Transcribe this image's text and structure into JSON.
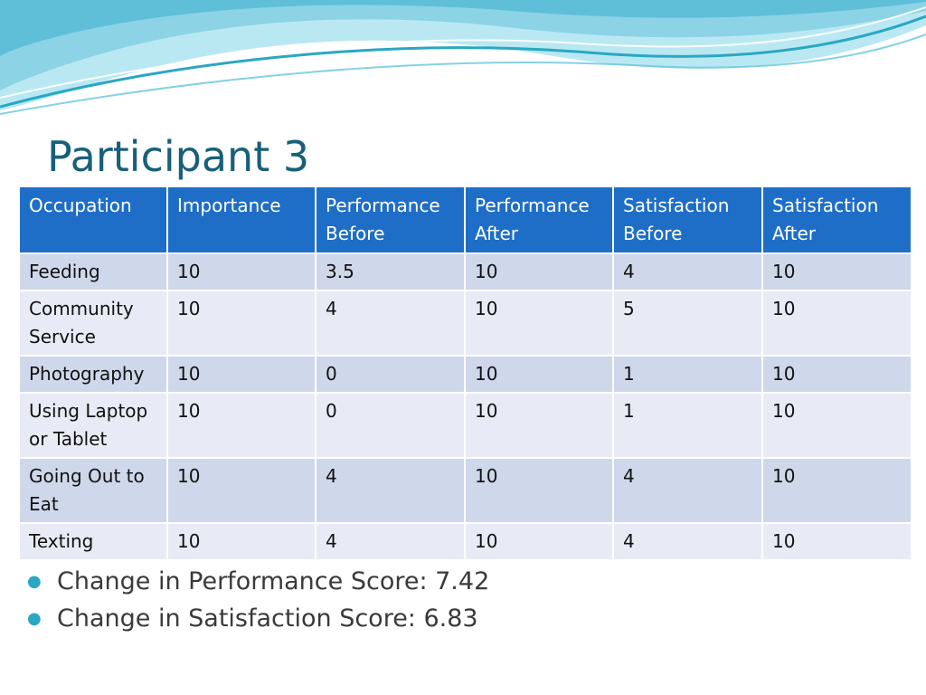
{
  "slide": {
    "title": "Participant 3"
  },
  "table": {
    "headers": [
      [
        "Occupation"
      ],
      [
        "Importance"
      ],
      [
        "Performance",
        "Before"
      ],
      [
        "Performance",
        "After"
      ],
      [
        "Satisfaction",
        "Before"
      ],
      [
        "Satisfaction",
        "After"
      ]
    ],
    "rows": [
      [
        [
          "Feeding"
        ],
        "10",
        "3.5",
        "10",
        "4",
        "10"
      ],
      [
        [
          "Community",
          "Service"
        ],
        "10",
        "4",
        "10",
        "5",
        "10"
      ],
      [
        [
          "Photography"
        ],
        "10",
        "0",
        "10",
        "1",
        "10"
      ],
      [
        [
          "Using Laptop",
          "or Tablet"
        ],
        "10",
        "0",
        "10",
        "1",
        "10"
      ],
      [
        [
          "Going Out to",
          "Eat"
        ],
        "10",
        "4",
        "10",
        "4",
        "10"
      ],
      [
        [
          "Texting"
        ],
        "10",
        "4",
        "10",
        "4",
        "10"
      ]
    ]
  },
  "bullets": [
    "Change in Performance Score: 7.42",
    "Change in Satisfaction Score: 6.83"
  ],
  "colors": {
    "title": "#17607a",
    "header_bg": "#1e6ec8",
    "row_odd": "#cfd7ea",
    "row_even": "#e8ebf5",
    "bullet": "#2aa7c3"
  },
  "icons": {
    "bullet": "bullet-dot-icon"
  }
}
